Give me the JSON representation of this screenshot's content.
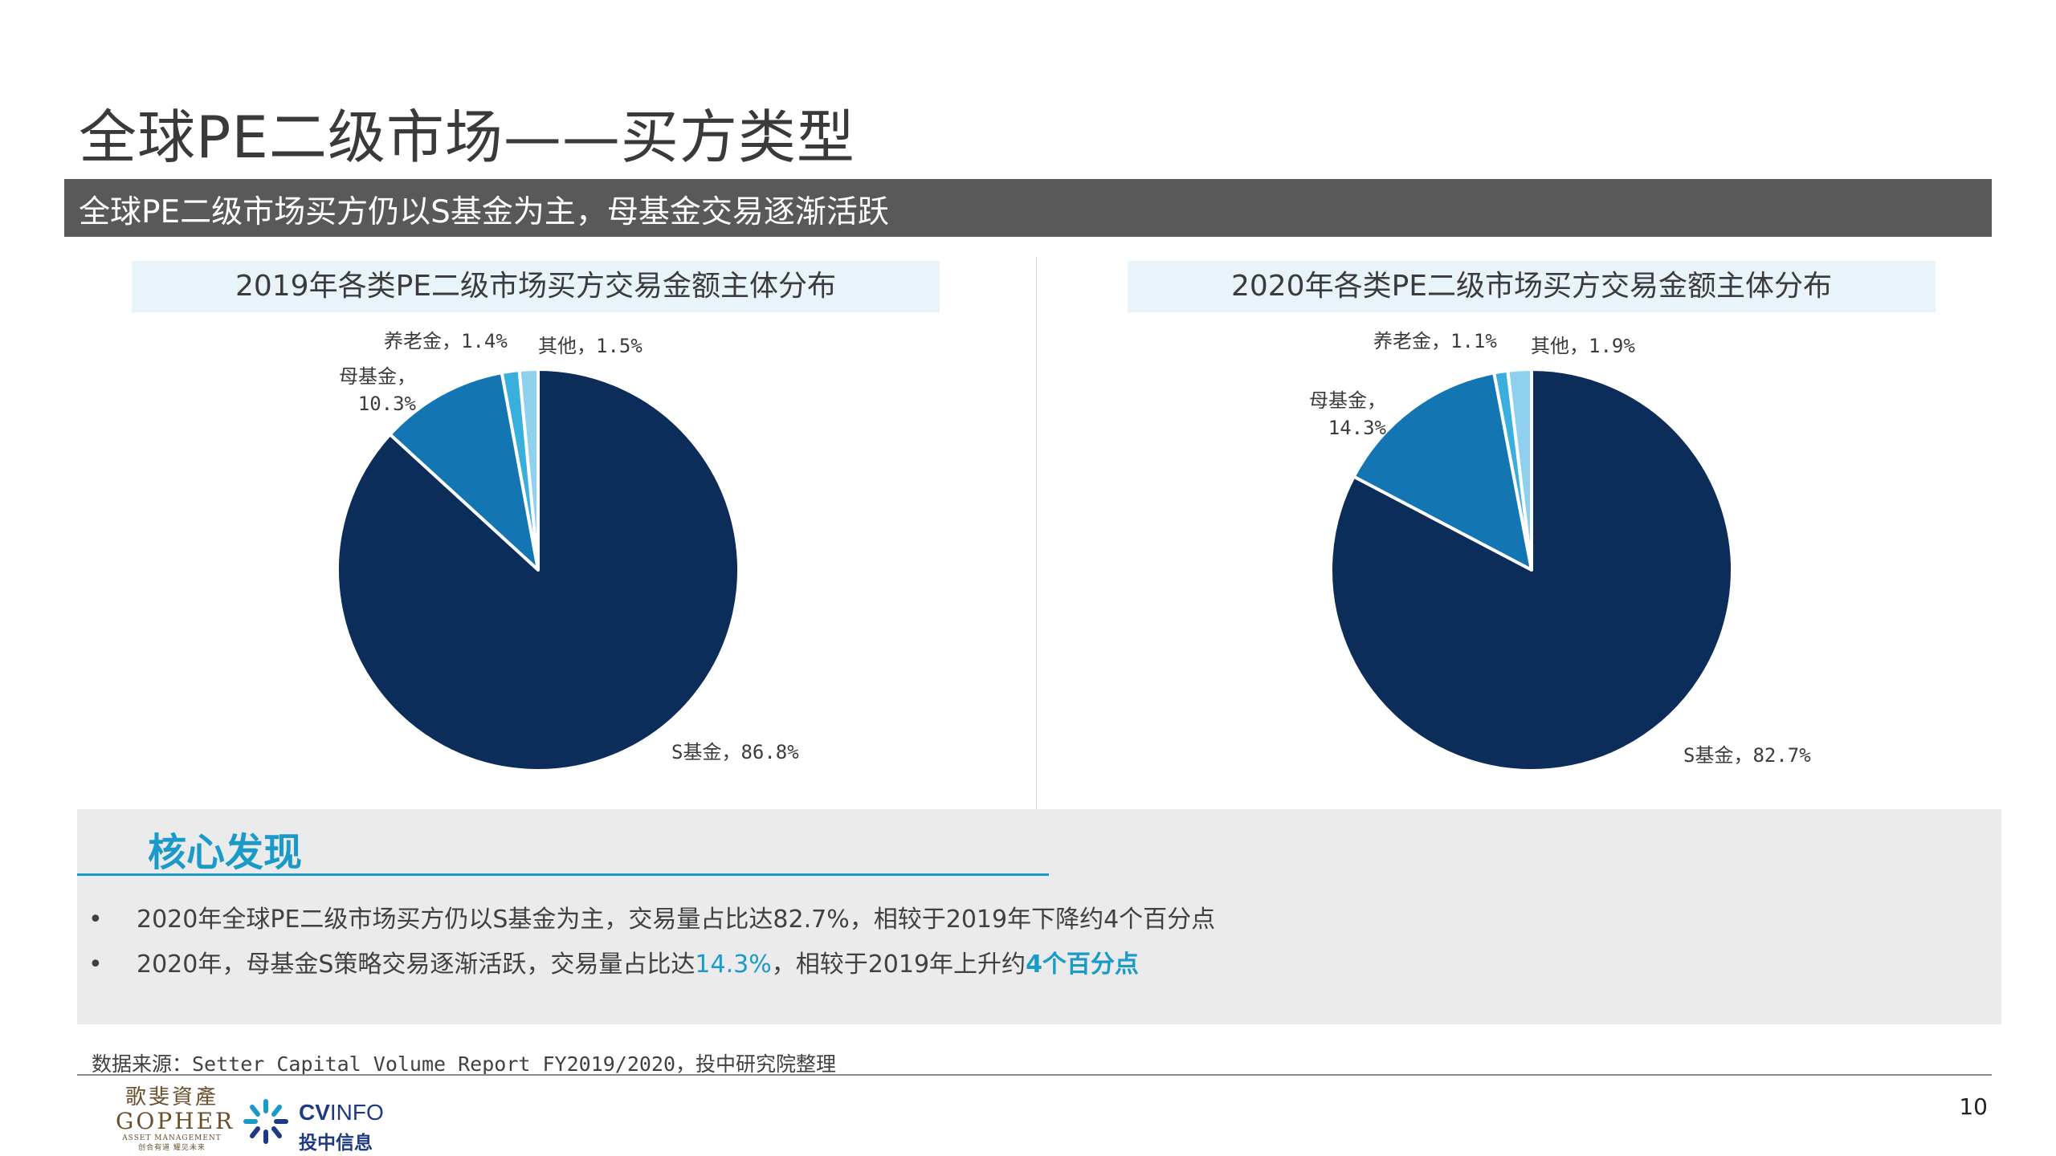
{
  "page": {
    "title": "全球PE二级市场——买方类型",
    "subtitle": "全球PE二级市场买方仍以S基金为主，母基金交易逐渐活跃",
    "page_number": "10",
    "source": "数据来源：Setter Capital Volume Report FY2019/2020，投中研究院整理"
  },
  "colors": {
    "s_fund": "#0c2d5a",
    "fof": "#1376b3",
    "pension": "#3aaedd",
    "other": "#8fd0ee",
    "accent": "#1a9ac9",
    "subtitle_bar": "#595959"
  },
  "chart_data": [
    {
      "type": "pie",
      "title": "2019年各类PE二级市场买方交易金额主体分布",
      "slices": [
        {
          "name": "其他",
          "value": 1.5,
          "label": "其他，1.5%"
        },
        {
          "name": "养老金",
          "value": 1.4,
          "label": "养老金，1.4%"
        },
        {
          "name": "母基金",
          "value": 10.3,
          "label_line1": "母基金，",
          "label_line2": "10.3%"
        },
        {
          "name": "S基金",
          "value": 86.8,
          "label": "S基金，86.8%"
        }
      ]
    },
    {
      "type": "pie",
      "title": "2020年各类PE二级市场买方交易金额主体分布",
      "slices": [
        {
          "name": "其他",
          "value": 1.9,
          "label": "其他，1.9%"
        },
        {
          "name": "养老金",
          "value": 1.1,
          "label": "养老金，1.1%"
        },
        {
          "name": "母基金",
          "value": 14.3,
          "label_line1": "母基金，",
          "label_line2": "14.3%"
        },
        {
          "name": "S基金",
          "value": 82.7,
          "label": "S基金，82.7%"
        }
      ]
    }
  ],
  "findings": {
    "title": "核心发现",
    "bullet_char": "•",
    "items": [
      {
        "text": "2020年全球PE二级市场买方仍以S基金为主，交易量占比达82.7%，相较于2019年下降约4个百分点"
      },
      {
        "pre": "2020年，母基金S策略交易逐渐活跃，交易量占比达",
        "hl": "14.3%",
        "mid": "，相较于2019年上升约",
        "hl_bold": "4个百分点"
      }
    ]
  },
  "logos": {
    "gopher_cn": "歌斐資產",
    "gopher_en": "GOPHER",
    "gopher_sub": "ASSET MANAGEMENT",
    "gopher_slogan": "创合有道  耀见未来",
    "cvinfo_en_bold": "CV",
    "cvinfo_en_light": "INFO",
    "cvinfo_cn": "投中信息"
  }
}
